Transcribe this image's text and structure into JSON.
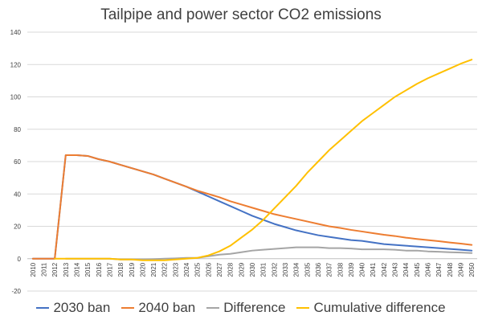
{
  "chart_data": {
    "type": "line",
    "title": "Tailpipe and power sector CO2 emissions",
    "xlabel": "",
    "ylabel": "",
    "ylim": [
      -20,
      140
    ],
    "yticks": [
      -20,
      0,
      20,
      40,
      60,
      80,
      100,
      120,
      140
    ],
    "grid": true,
    "legend_position": "bottom",
    "x": [
      2010,
      2011,
      2012,
      2013,
      2014,
      2015,
      2016,
      2017,
      2018,
      2019,
      2020,
      2021,
      2022,
      2023,
      2024,
      2025,
      2026,
      2027,
      2028,
      2029,
      2030,
      2031,
      2032,
      2033,
      2034,
      2035,
      2036,
      2037,
      2038,
      2039,
      2040,
      2041,
      2042,
      2043,
      2044,
      2045,
      2046,
      2047,
      2048,
      2049,
      2050
    ],
    "series": [
      {
        "name": "2030 ban",
        "color": "#4472C4",
        "values": [
          0,
          0,
          0,
          64,
          64,
          63.5,
          61.5,
          60,
          58,
          56,
          54,
          52,
          49.5,
          47,
          44.5,
          41.5,
          38.5,
          35.5,
          32.5,
          29.5,
          26.5,
          24,
          21.5,
          19.5,
          17.5,
          16,
          14.5,
          13.5,
          12.5,
          11.5,
          11,
          10,
          9,
          8.5,
          8,
          7.5,
          7,
          6.5,
          6,
          5.5,
          5
        ]
      },
      {
        "name": "2040 ban",
        "color": "#ED7D31",
        "values": [
          0,
          0,
          0,
          64,
          64,
          63.5,
          61.5,
          60,
          58,
          56,
          54,
          52,
          49.5,
          47,
          44.5,
          42,
          40,
          38,
          35.5,
          33.5,
          31.5,
          29.5,
          27.5,
          26,
          24.5,
          23,
          21.5,
          20,
          19,
          17.8,
          16.8,
          15.8,
          14.8,
          14,
          13,
          12.2,
          11.5,
          10.8,
          10,
          9.3,
          8.5
        ]
      },
      {
        "name": "Difference",
        "color": "#A5A5A5",
        "values": [
          null,
          null,
          null,
          0,
          0,
          0,
          0,
          0,
          -0.5,
          -0.5,
          -0.5,
          -0.3,
          0,
          0.2,
          0.5,
          0.5,
          1.5,
          2.5,
          3,
          4,
          5,
          5.5,
          6,
          6.5,
          7,
          7,
          7,
          6.5,
          6.5,
          6.3,
          5.8,
          5.8,
          5.8,
          5.5,
          5,
          5,
          4.5,
          4.3,
          4,
          3.8,
          3.5
        ]
      },
      {
        "name": "Cumulative difference",
        "color": "#FFC000",
        "values": [
          null,
          null,
          0,
          0,
          0,
          0,
          0,
          0,
          -0.5,
          -0.5,
          -1,
          -1,
          -1,
          -0.5,
          0,
          0.5,
          2,
          4.5,
          8,
          13,
          18,
          24,
          31,
          38,
          45,
          53,
          60,
          67,
          73,
          79,
          85,
          90,
          95,
          100,
          104,
          108,
          111.5,
          114.5,
          117.5,
          120.5,
          123
        ]
      }
    ]
  }
}
